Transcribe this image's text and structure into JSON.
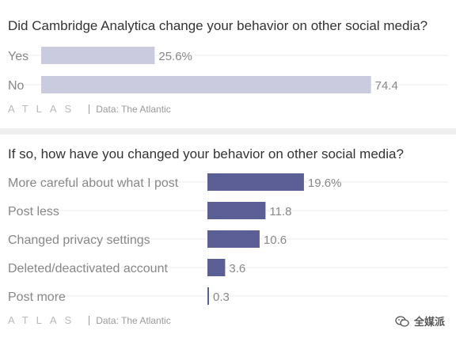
{
  "colors": {
    "bar1": "#cbcbe0",
    "bar2": "#5c5e96",
    "text": "#333333",
    "muted": "#888888",
    "grid": "#ececec"
  },
  "chart_data": [
    {
      "type": "bar",
      "orientation": "horizontal",
      "title": "Did Cambridge Analytica change your behavior on other social media?",
      "categories": [
        "Yes",
        "No"
      ],
      "values": [
        25.6,
        74.4
      ],
      "value_labels": [
        "25.6%",
        "74.4"
      ],
      "xlim": [
        0,
        100
      ],
      "grid": true,
      "legend": "none"
    },
    {
      "type": "bar",
      "orientation": "horizontal",
      "title": "If so, how have you changed your behavior on other social media?",
      "categories": [
        "More careful about what I post",
        "Post less",
        "Changed privacy settings",
        "Deleted/deactivated account",
        "Post more"
      ],
      "values": [
        19.6,
        11.8,
        10.6,
        3.6,
        0.3
      ],
      "value_labels": [
        "19.6%",
        "11.8",
        "10.6",
        "3.6",
        "0.3"
      ],
      "xlim": [
        0,
        100
      ],
      "grid": true,
      "legend": "none"
    }
  ],
  "footer": {
    "logo": "ATLAS",
    "source": "Data: The Atlantic"
  },
  "watermark": {
    "icon": "wechat-icon",
    "text": "全媒派"
  }
}
